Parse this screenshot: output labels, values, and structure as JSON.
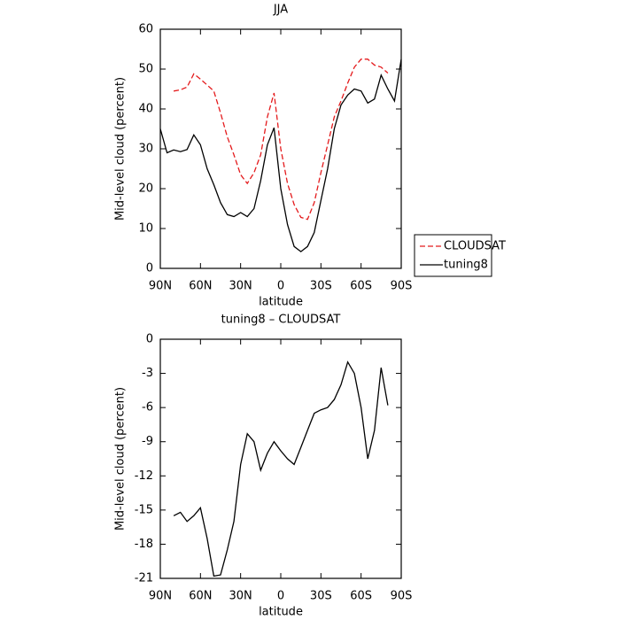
{
  "chart_data": [
    {
      "type": "line",
      "title": "JJA",
      "xlabel": "latitude",
      "ylabel": "Mid-level cloud (percent)",
      "x": [
        90,
        85,
        80,
        75,
        70,
        65,
        60,
        55,
        50,
        45,
        40,
        35,
        30,
        25,
        20,
        15,
        10,
        5,
        0,
        -5,
        -10,
        -15,
        -20,
        -25,
        -30,
        -35,
        -40,
        -45,
        -50,
        -55,
        -60,
        -65,
        -70,
        -75,
        -80,
        -85,
        -90
      ],
      "series": [
        {
          "name": "CLOUDSAT",
          "color": "#e41a1c",
          "style": "dashed",
          "values": [
            null,
            null,
            44.5,
            44.8,
            45.5,
            48.8,
            47.5,
            46,
            44.5,
            39,
            33,
            28.5,
            23.5,
            21.3,
            24,
            28.5,
            38,
            44,
            30,
            21.3,
            16,
            12.8,
            12.3,
            16.5,
            24,
            31,
            38,
            42,
            46.5,
            50.5,
            52.5,
            52.5,
            51,
            50.5,
            49,
            null,
            null
          ]
        },
        {
          "name": "tuning8",
          "color": "#000000",
          "style": "solid",
          "values": [
            35,
            29,
            29.7,
            29.3,
            29.8,
            33.5,
            31,
            25,
            21,
            16.5,
            13.5,
            13,
            14,
            13,
            15,
            22,
            31,
            35.3,
            20,
            11,
            5.5,
            4.2,
            5.5,
            9,
            17,
            25,
            35,
            41,
            43.5,
            45,
            44.5,
            41.5,
            42.5,
            48.5,
            45,
            42,
            52.5
          ]
        }
      ],
      "xlim": [
        90,
        -90
      ],
      "xticks": [
        {
          "value": 90,
          "label": "90N"
        },
        {
          "value": 60,
          "label": "60N"
        },
        {
          "value": 30,
          "label": "30N"
        },
        0,
        {
          "value": -30,
          "label": "30S"
        },
        {
          "value": -60,
          "label": "60S"
        },
        {
          "value": -90,
          "label": "90S"
        }
      ],
      "ylim": [
        0,
        60
      ],
      "yticks": [
        0,
        10,
        20,
        30,
        40,
        50,
        60
      ],
      "legend": "right"
    },
    {
      "type": "line",
      "title": "tuning8 – CLOUDSAT",
      "xlabel": "latitude",
      "ylabel": "Mid-level cloud (percent)",
      "x": [
        90,
        85,
        80,
        75,
        70,
        65,
        60,
        55,
        50,
        45,
        40,
        35,
        30,
        25,
        20,
        15,
        10,
        5,
        0,
        -5,
        -10,
        -15,
        -20,
        -25,
        -30,
        -35,
        -40,
        -45,
        -50,
        -55,
        -60,
        -65,
        -70,
        -75,
        -80,
        -85,
        -90
      ],
      "series": [
        {
          "color": "#000000",
          "style": "solid",
          "values": [
            null,
            null,
            -15.5,
            -15.2,
            -16,
            -15.5,
            -14.8,
            -17.5,
            -20.8,
            -20.7,
            -18.5,
            -16,
            -11,
            -8.3,
            -9,
            -11.5,
            -10,
            -9,
            -9.8,
            -10.5,
            -11,
            -9.5,
            -8,
            -6.5,
            -6.2,
            -6,
            -5.3,
            -4,
            -2,
            -3,
            -6,
            -10.5,
            -8,
            -2.5,
            -5.8,
            null,
            null
          ]
        }
      ],
      "xlim": [
        90,
        -90
      ],
      "xticks": [
        {
          "value": 90,
          "label": "90N"
        },
        {
          "value": 60,
          "label": "60N"
        },
        {
          "value": 30,
          "label": "30N"
        },
        0,
        {
          "value": -30,
          "label": "30S"
        },
        {
          "value": -60,
          "label": "60S"
        },
        {
          "value": -90,
          "label": "90S"
        }
      ],
      "ylim": [
        -21,
        0
      ],
      "yticks": [
        -21,
        -18,
        -15,
        -12,
        -9,
        -6,
        -3,
        0
      ]
    }
  ]
}
